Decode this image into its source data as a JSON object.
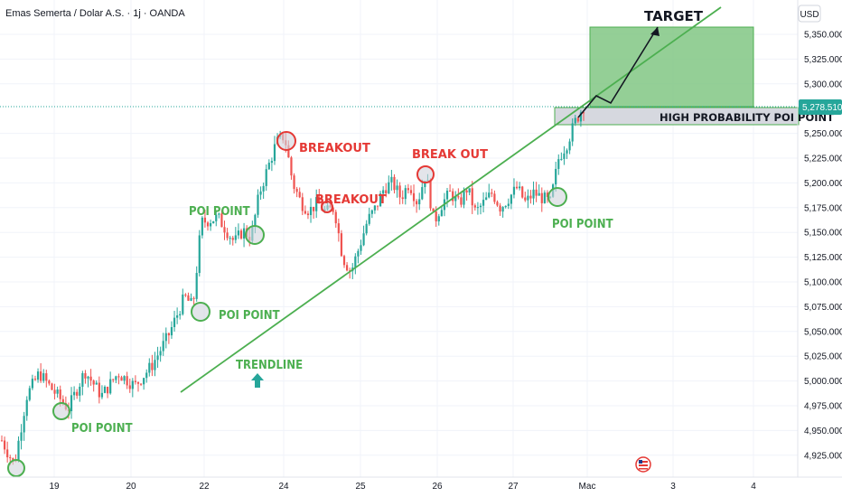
{
  "header": {
    "title": "Emas Semerta / Dolar A.S. · 1j · OANDA"
  },
  "price_axis": {
    "currency": "USD",
    "ticks": [
      "5,350.000",
      "5,325.000",
      "5,300.000",
      "5,250.000",
      "5,225.000",
      "5,200.000",
      "5,175.000",
      "5,150.000",
      "5,125.000",
      "5,100.000",
      "5,075.000",
      "5,050.000",
      "5,025.000",
      "5,000.000",
      "4,975.000",
      "4,950.000",
      "4,925.000"
    ],
    "current_price": "5,278.510"
  },
  "time_axis": {
    "ticks": [
      "19",
      "20",
      "22",
      "24",
      "25",
      "26",
      "27",
      "Mac",
      "3",
      "4"
    ]
  },
  "annotations": {
    "target": "TARGET",
    "hp_poi": "HIGH PROBABILITY POI POINT",
    "breakout1": "BREAKOUT",
    "breakout2": "BREAKOUT",
    "breakout3": "BREAK OUT",
    "poi1": "POI POINT",
    "poi2": "POI POINT",
    "poi3": "POI POINT",
    "poi4": "POI POINT",
    "trendline": "TRENDLINE"
  },
  "colors": {
    "up": "#26a69a",
    "down": "#ef5350",
    "trend": "#4caf50",
    "target_zone": "#81c784",
    "poi_zone": "#d1d4dc",
    "price_label": "#26a69a"
  },
  "chart_data": {
    "type": "candlestick",
    "symbol": "Emas Semerta / Dolar A.S.",
    "timeframe": "1j",
    "source": "OANDA",
    "x_ticks": [
      "19",
      "20",
      "22",
      "24",
      "25",
      "26",
      "27",
      "Mac",
      "3",
      "4"
    ],
    "y_range": [
      4915,
      5370
    ],
    "last_price": 5278.51,
    "trendline": {
      "from": [
        "21",
        4990
      ],
      "to": [
        "3",
        5375
      ]
    },
    "target_zone": [
      5278,
      5358
    ],
    "poi_zone": [
      5263,
      5280
    ],
    "price_path": [
      [
        0,
        4940
      ],
      [
        3,
        4915
      ],
      [
        6,
        4985
      ],
      [
        9,
        5008
      ],
      [
        12,
        4992
      ],
      [
        16,
        4972
      ],
      [
        20,
        5010
      ],
      [
        24,
        4985
      ],
      [
        28,
        5008
      ],
      [
        32,
        4995
      ],
      [
        36,
        5015
      ],
      [
        40,
        5045
      ],
      [
        44,
        5085
      ],
      [
        46,
        5075
      ],
      [
        48,
        5160
      ],
      [
        52,
        5165
      ],
      [
        56,
        5140
      ],
      [
        58,
        5152
      ],
      [
        60,
        5145
      ],
      [
        62,
        5190
      ],
      [
        64,
        5215
      ],
      [
        66,
        5240
      ],
      [
        68,
        5248
      ],
      [
        70,
        5200
      ],
      [
        72,
        5180
      ],
      [
        74,
        5172
      ],
      [
        76,
        5180
      ],
      [
        78,
        5170
      ],
      [
        80,
        5175
      ],
      [
        82,
        5125
      ],
      [
        84,
        5110
      ],
      [
        86,
        5135
      ],
      [
        88,
        5162
      ],
      [
        90,
        5175
      ],
      [
        92,
        5195
      ],
      [
        94,
        5200
      ],
      [
        96,
        5185
      ],
      [
        98,
        5200
      ],
      [
        100,
        5180
      ],
      [
        102,
        5210
      ],
      [
        104,
        5160
      ],
      [
        106,
        5180
      ],
      [
        108,
        5190
      ],
      [
        110,
        5178
      ],
      [
        112,
        5195
      ],
      [
        114,
        5170
      ],
      [
        116,
        5180
      ],
      [
        118,
        5190
      ],
      [
        120,
        5175
      ],
      [
        122,
        5185
      ],
      [
        124,
        5195
      ],
      [
        126,
        5180
      ],
      [
        128,
        5190
      ],
      [
        130,
        5185
      ],
      [
        132,
        5180
      ],
      [
        134,
        5225
      ],
      [
        136,
        5240
      ],
      [
        138,
        5262
      ],
      [
        140,
        5278
      ]
    ]
  }
}
